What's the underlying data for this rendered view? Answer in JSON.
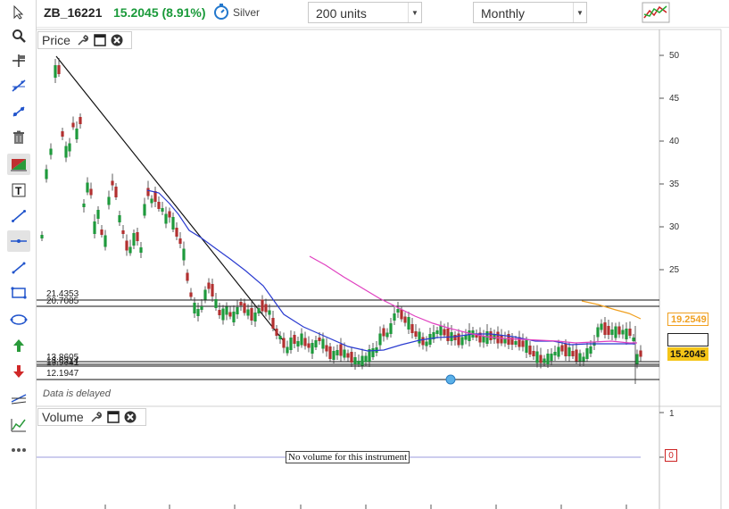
{
  "header": {
    "symbol": "ZB_16221",
    "price_change": "15.2045 (8.91%)",
    "tier": "Silver",
    "units": "200 units",
    "period": "Monthly"
  },
  "toolbar": {
    "icons": [
      "cursor-icon",
      "zoom-icon",
      "crosshair-icon",
      "trendline-icon",
      "ray-icon",
      "trash-icon",
      "fib-icon",
      "text-icon",
      "line-icon",
      "horizontal-line-icon",
      "segment-icon",
      "rectangle-icon",
      "ellipse-icon",
      "arrow-up-icon",
      "arrow-down-icon",
      "pitchfork-icon",
      "indicator-icon",
      "more-icon"
    ]
  },
  "price_pane": {
    "label": "Price",
    "delayed_note": "Data is delayed",
    "y_ticks": [
      "50",
      "45",
      "40",
      "35",
      "30",
      "25"
    ],
    "levels": [
      "21.4353",
      "20.7085",
      "13.8605",
      "13.6214",
      "13.5341",
      "12.1947"
    ],
    "current_price": "15.2045",
    "ma_price": "19.2549",
    "colors": {
      "up": "#1e9a3c",
      "down": "#b23030",
      "ma_blue": "#2a3bd0",
      "ma_pink": "#e040c0",
      "ma_orange": "#f0a020",
      "current_bg": "#f5c518"
    }
  },
  "volume_pane": {
    "label": "Volume",
    "y_ticks": [
      "1",
      "0"
    ],
    "message": "No volume for this instrument",
    "zero_label": "0"
  }
}
